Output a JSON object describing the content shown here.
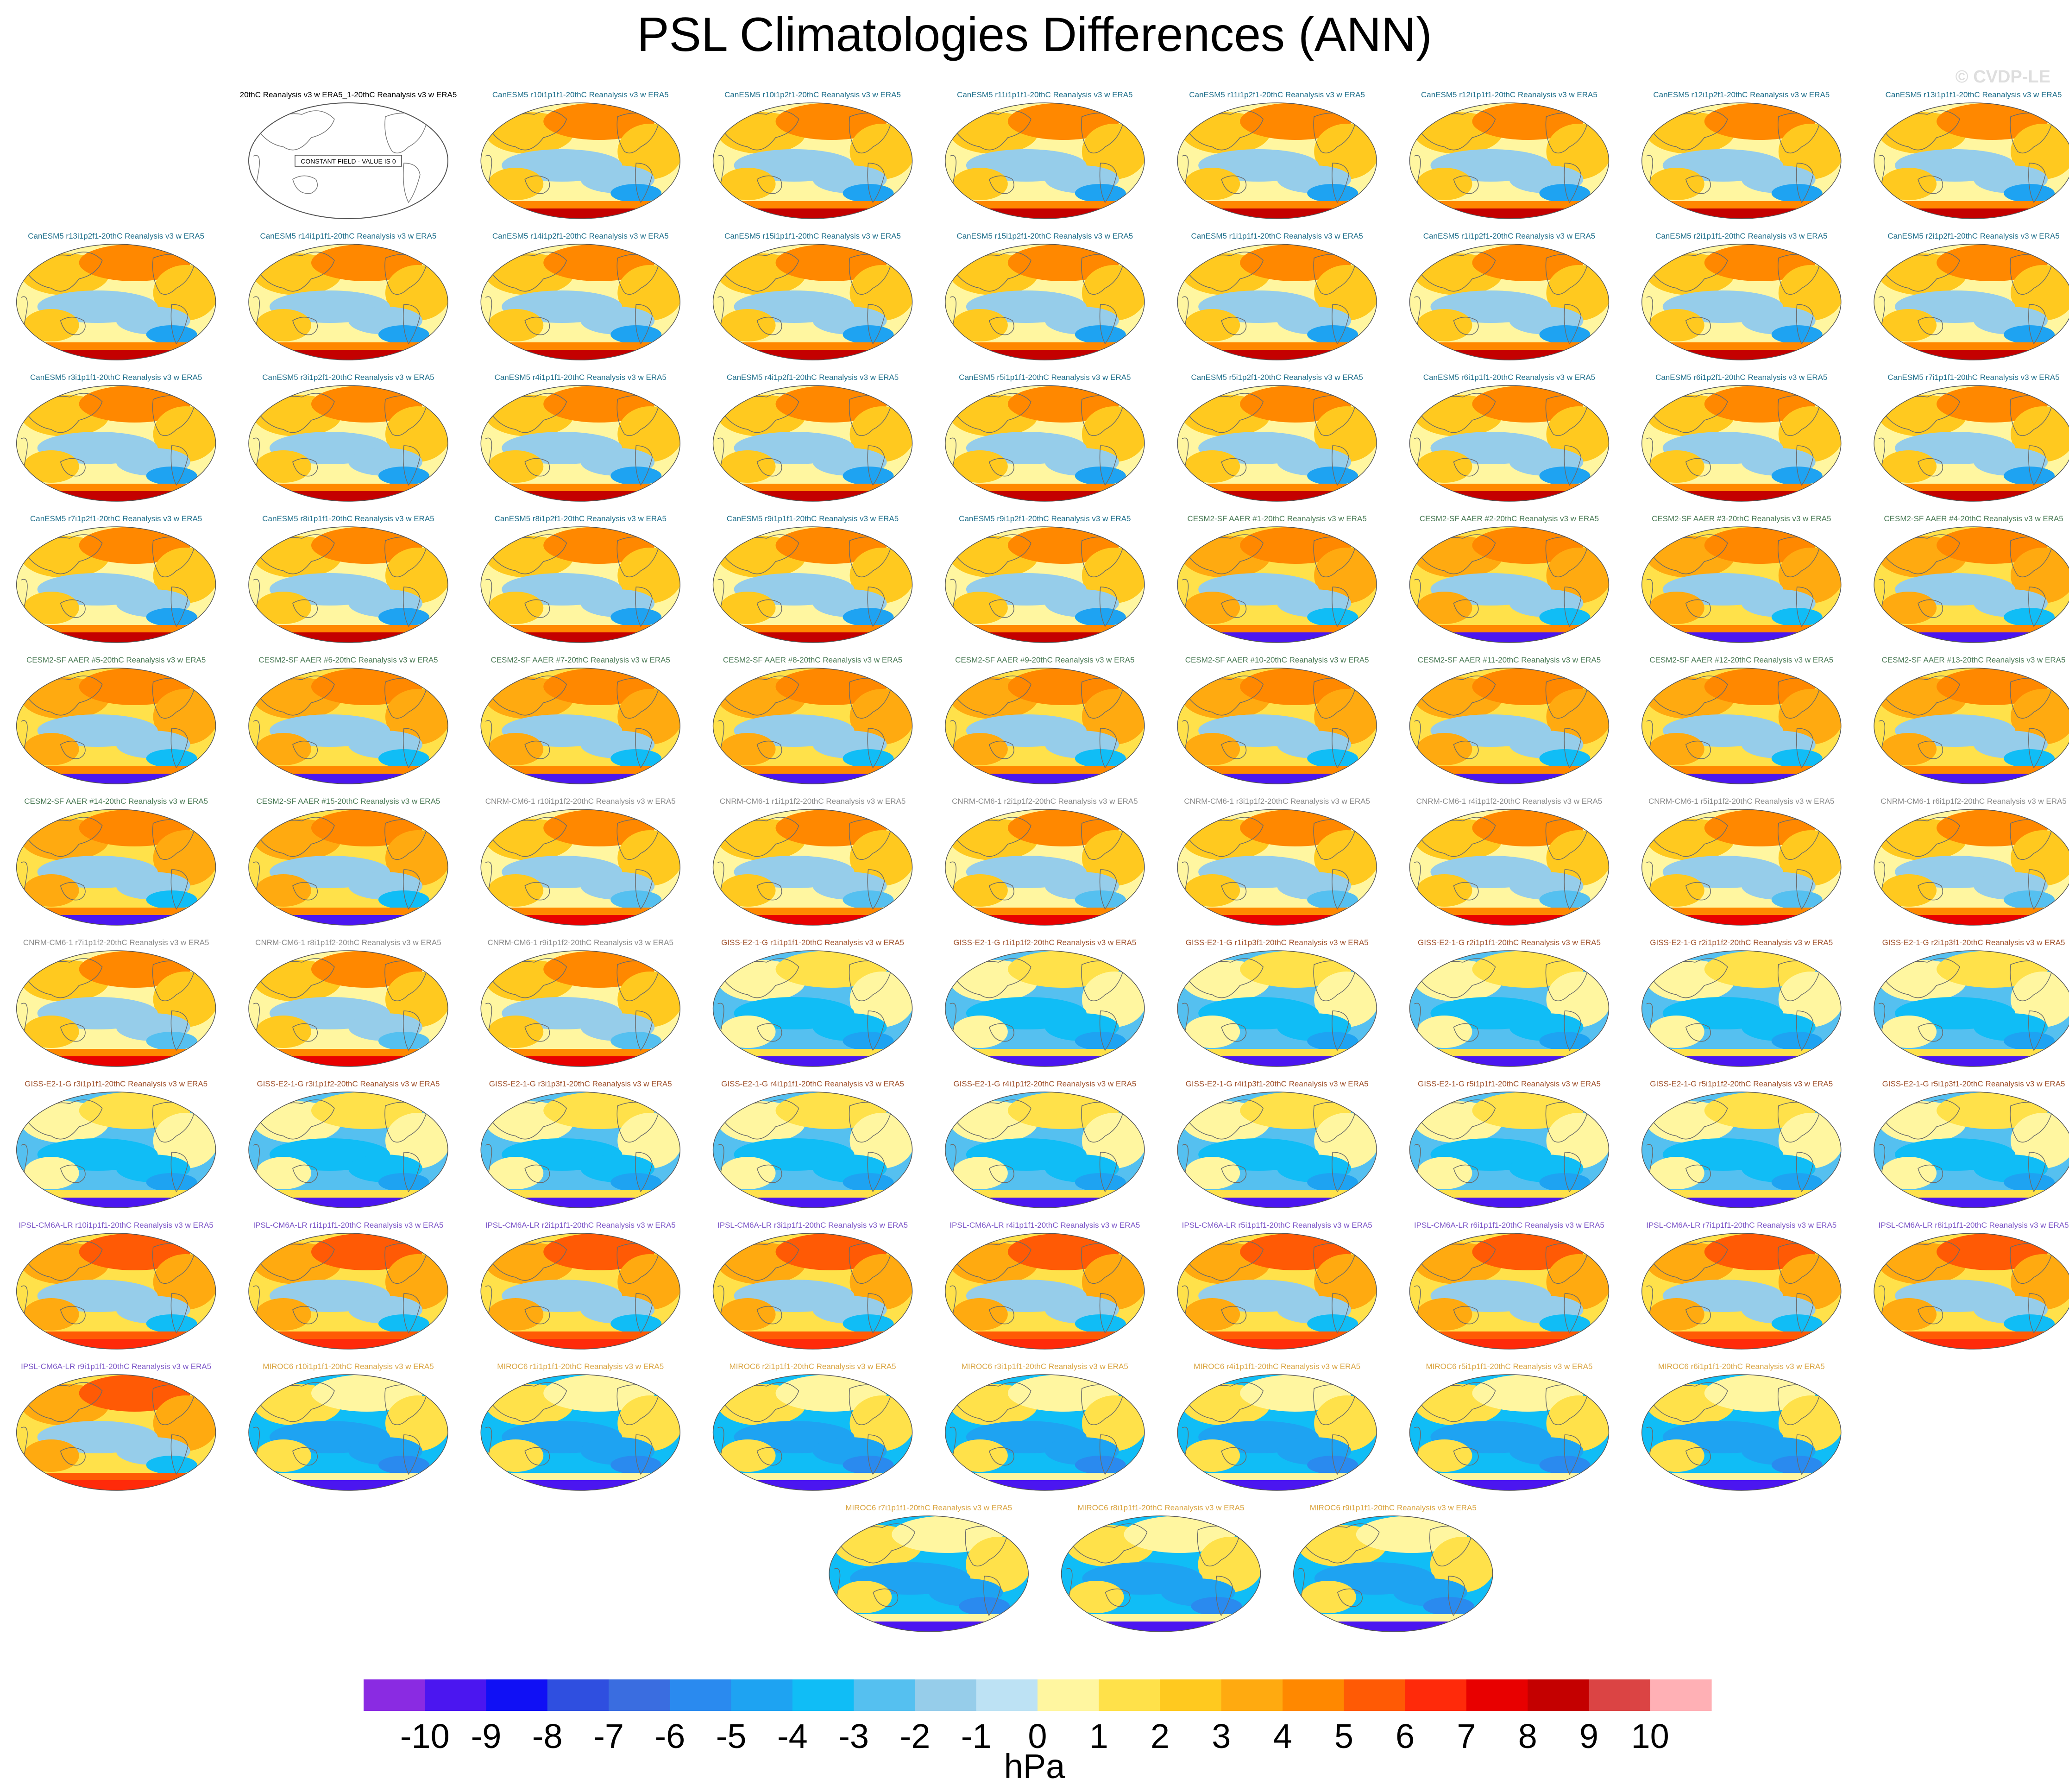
{
  "title": "PSL Climatologies Differences (ANN)",
  "watermark": "© CVDP-LE",
  "colors": {
    "CanESM5": "#1f6f8b",
    "CESM2-SF AAER": "#4a7a55",
    "CNRM-CM6-1": "#8a8a8a",
    "GISS-E2-1-G": "#a0522d",
    "IPSL-CM6A-LR": "#7b55c7",
    "MIROC6": "#d9a441",
    "obs": "#000000"
  },
  "chart_data": {
    "type": "heatmap",
    "title": "PSL Climatologies Differences (ANN)",
    "colorbar": {
      "units": "hPa",
      "levels": [
        -10,
        -9,
        -8,
        -7,
        -6,
        -5,
        -4,
        -3,
        -2,
        -1,
        0,
        1,
        2,
        3,
        4,
        5,
        6,
        7,
        8,
        9,
        10
      ],
      "colors": [
        "#8a2be2",
        "#4b16f0",
        "#1010f5",
        "#2f4fe0",
        "#3a6de0",
        "#2a8aef",
        "#1ea3f2",
        "#10bdf6",
        "#55c0f0",
        "#96cdea",
        "#bde2f4",
        "#fff6a0",
        "#ffe14a",
        "#ffc91f",
        "#ffaa10",
        "#ff8800",
        "#ff5a05",
        "#ff2a0a",
        "#e80000",
        "#c40000",
        "#db4444",
        "#ffb0b5"
      ]
    },
    "panels": [
      {
        "title": "20thC Reanalysis v3 w ERA5_1-20thC Reanalysis v3 w ERA5",
        "group": "obs",
        "note": "CONSTANT FIELD - VALUE IS 0"
      },
      {
        "title": "CanESM5 r10i1p1f1-20thC Reanalysis v3 w ERA5",
        "group": "CanESM5"
      },
      {
        "title": "CanESM5 r10i1p2f1-20thC Reanalysis v3 w ERA5",
        "group": "CanESM5"
      },
      {
        "title": "CanESM5 r11i1p1f1-20thC Reanalysis v3 w ERA5",
        "group": "CanESM5"
      },
      {
        "title": "CanESM5 r11i1p2f1-20thC Reanalysis v3 w ERA5",
        "group": "CanESM5"
      },
      {
        "title": "CanESM5 r12i1p1f1-20thC Reanalysis v3 w ERA5",
        "group": "CanESM5"
      },
      {
        "title": "CanESM5 r12i1p2f1-20thC Reanalysis v3 w ERA5",
        "group": "CanESM5"
      },
      {
        "title": "CanESM5 r13i1p1f1-20thC Reanalysis v3 w ERA5",
        "group": "CanESM5"
      },
      {
        "title": "CanESM5 r13i1p2f1-20thC Reanalysis v3 w ERA5",
        "group": "CanESM5"
      },
      {
        "title": "CanESM5 r14i1p1f1-20thC Reanalysis v3 w ERA5",
        "group": "CanESM5"
      },
      {
        "title": "CanESM5 r14i1p2f1-20thC Reanalysis v3 w ERA5",
        "group": "CanESM5"
      },
      {
        "title": "CanESM5 r15i1p1f1-20thC Reanalysis v3 w ERA5",
        "group": "CanESM5"
      },
      {
        "title": "CanESM5 r15i1p2f1-20thC Reanalysis v3 w ERA5",
        "group": "CanESM5"
      },
      {
        "title": "CanESM5 r1i1p1f1-20thC Reanalysis v3 w ERA5",
        "group": "CanESM5"
      },
      {
        "title": "CanESM5 r1i1p2f1-20thC Reanalysis v3 w ERA5",
        "group": "CanESM5"
      },
      {
        "title": "CanESM5 r2i1p1f1-20thC Reanalysis v3 w ERA5",
        "group": "CanESM5"
      },
      {
        "title": "CanESM5 r2i1p2f1-20thC Reanalysis v3 w ERA5",
        "group": "CanESM5"
      },
      {
        "title": "CanESM5 r3i1p1f1-20thC Reanalysis v3 w ERA5",
        "group": "CanESM5"
      },
      {
        "title": "CanESM5 r3i1p2f1-20thC Reanalysis v3 w ERA5",
        "group": "CanESM5"
      },
      {
        "title": "CanESM5 r4i1p1f1-20thC Reanalysis v3 w ERA5",
        "group": "CanESM5"
      },
      {
        "title": "CanESM5 r4i1p2f1-20thC Reanalysis v3 w ERA5",
        "group": "CanESM5"
      },
      {
        "title": "CanESM5 r5i1p1f1-20thC Reanalysis v3 w ERA5",
        "group": "CanESM5"
      },
      {
        "title": "CanESM5 r5i1p2f1-20thC Reanalysis v3 w ERA5",
        "group": "CanESM5"
      },
      {
        "title": "CanESM5 r6i1p1f1-20thC Reanalysis v3 w ERA5",
        "group": "CanESM5"
      },
      {
        "title": "CanESM5 r6i1p2f1-20thC Reanalysis v3 w ERA5",
        "group": "CanESM5"
      },
      {
        "title": "CanESM5 r7i1p1f1-20thC Reanalysis v3 w ERA5",
        "group": "CanESM5"
      },
      {
        "title": "CanESM5 r7i1p2f1-20thC Reanalysis v3 w ERA5",
        "group": "CanESM5"
      },
      {
        "title": "CanESM5 r8i1p1f1-20thC Reanalysis v3 w ERA5",
        "group": "CanESM5"
      },
      {
        "title": "CanESM5 r8i1p2f1-20thC Reanalysis v3 w ERA5",
        "group": "CanESM5"
      },
      {
        "title": "CanESM5 r9i1p1f1-20thC Reanalysis v3 w ERA5",
        "group": "CanESM5"
      },
      {
        "title": "CanESM5 r9i1p2f1-20thC Reanalysis v3 w ERA5",
        "group": "CanESM5"
      },
      {
        "title": "CESM2-SF AAER #1-20thC Reanalysis v3 w ERA5",
        "group": "CESM2-SF AAER"
      },
      {
        "title": "CESM2-SF AAER #2-20thC Reanalysis v3 w ERA5",
        "group": "CESM2-SF AAER"
      },
      {
        "title": "CESM2-SF AAER #3-20thC Reanalysis v3 w ERA5",
        "group": "CESM2-SF AAER"
      },
      {
        "title": "CESM2-SF AAER #4-20thC Reanalysis v3 w ERA5",
        "group": "CESM2-SF AAER"
      },
      {
        "title": "CESM2-SF AAER #5-20thC Reanalysis v3 w ERA5",
        "group": "CESM2-SF AAER"
      },
      {
        "title": "CESM2-SF AAER #6-20thC Reanalysis v3 w ERA5",
        "group": "CESM2-SF AAER"
      },
      {
        "title": "CESM2-SF AAER #7-20thC Reanalysis v3 w ERA5",
        "group": "CESM2-SF AAER"
      },
      {
        "title": "CESM2-SF AAER #8-20thC Reanalysis v3 w ERA5",
        "group": "CESM2-SF AAER"
      },
      {
        "title": "CESM2-SF AAER #9-20thC Reanalysis v3 w ERA5",
        "group": "CESM2-SF AAER"
      },
      {
        "title": "CESM2-SF AAER #10-20thC Reanalysis v3 w ERA5",
        "group": "CESM2-SF AAER"
      },
      {
        "title": "CESM2-SF AAER #11-20thC Reanalysis v3 w ERA5",
        "group": "CESM2-SF AAER"
      },
      {
        "title": "CESM2-SF AAER #12-20thC Reanalysis v3 w ERA5",
        "group": "CESM2-SF AAER"
      },
      {
        "title": "CESM2-SF AAER #13-20thC Reanalysis v3 w ERA5",
        "group": "CESM2-SF AAER"
      },
      {
        "title": "CESM2-SF AAER #14-20thC Reanalysis v3 w ERA5",
        "group": "CESM2-SF AAER"
      },
      {
        "title": "CESM2-SF AAER #15-20thC Reanalysis v3 w ERA5",
        "group": "CESM2-SF AAER"
      },
      {
        "title": "CNRM-CM6-1 r10i1p1f2-20thC Reanalysis v3 w ERA5",
        "group": "CNRM-CM6-1"
      },
      {
        "title": "CNRM-CM6-1 r1i1p1f2-20thC Reanalysis v3 w ERA5",
        "group": "CNRM-CM6-1"
      },
      {
        "title": "CNRM-CM6-1 r2i1p1f2-20thC Reanalysis v3 w ERA5",
        "group": "CNRM-CM6-1"
      },
      {
        "title": "CNRM-CM6-1 r3i1p1f2-20thC Reanalysis v3 w ERA5",
        "group": "CNRM-CM6-1"
      },
      {
        "title": "CNRM-CM6-1 r4i1p1f2-20thC Reanalysis v3 w ERA5",
        "group": "CNRM-CM6-1"
      },
      {
        "title": "CNRM-CM6-1 r5i1p1f2-20thC Reanalysis v3 w ERA5",
        "group": "CNRM-CM6-1"
      },
      {
        "title": "CNRM-CM6-1 r6i1p1f2-20thC Reanalysis v3 w ERA5",
        "group": "CNRM-CM6-1"
      },
      {
        "title": "CNRM-CM6-1 r7i1p1f2-20thC Reanalysis v3 w ERA5",
        "group": "CNRM-CM6-1"
      },
      {
        "title": "CNRM-CM6-1 r8i1p1f2-20thC Reanalysis v3 w ERA5",
        "group": "CNRM-CM6-1"
      },
      {
        "title": "CNRM-CM6-1 r9i1p1f2-20thC Reanalysis v3 w ERA5",
        "group": "CNRM-CM6-1"
      },
      {
        "title": "GISS-E2-1-G r1i1p1f1-20thC Reanalysis v3 w ERA5",
        "group": "GISS-E2-1-G"
      },
      {
        "title": "GISS-E2-1-G r1i1p1f2-20thC Reanalysis v3 w ERA5",
        "group": "GISS-E2-1-G"
      },
      {
        "title": "GISS-E2-1-G r1i1p3f1-20thC Reanalysis v3 w ERA5",
        "group": "GISS-E2-1-G"
      },
      {
        "title": "GISS-E2-1-G r2i1p1f1-20thC Reanalysis v3 w ERA5",
        "group": "GISS-E2-1-G"
      },
      {
        "title": "GISS-E2-1-G r2i1p1f2-20thC Reanalysis v3 w ERA5",
        "group": "GISS-E2-1-G"
      },
      {
        "title": "GISS-E2-1-G r2i1p3f1-20thC Reanalysis v3 w ERA5",
        "group": "GISS-E2-1-G"
      },
      {
        "title": "GISS-E2-1-G r3i1p1f1-20thC Reanalysis v3 w ERA5",
        "group": "GISS-E2-1-G"
      },
      {
        "title": "GISS-E2-1-G r3i1p1f2-20thC Reanalysis v3 w ERA5",
        "group": "GISS-E2-1-G"
      },
      {
        "title": "GISS-E2-1-G r3i1p3f1-20thC Reanalysis v3 w ERA5",
        "group": "GISS-E2-1-G"
      },
      {
        "title": "GISS-E2-1-G r4i1p1f1-20thC Reanalysis v3 w ERA5",
        "group": "GISS-E2-1-G"
      },
      {
        "title": "GISS-E2-1-G r4i1p1f2-20thC Reanalysis v3 w ERA5",
        "group": "GISS-E2-1-G"
      },
      {
        "title": "GISS-E2-1-G r4i1p3f1-20thC Reanalysis v3 w ERA5",
        "group": "GISS-E2-1-G"
      },
      {
        "title": "GISS-E2-1-G r5i1p1f1-20thC Reanalysis v3 w ERA5",
        "group": "GISS-E2-1-G"
      },
      {
        "title": "GISS-E2-1-G r5i1p1f2-20thC Reanalysis v3 w ERA5",
        "group": "GISS-E2-1-G"
      },
      {
        "title": "GISS-E2-1-G r5i1p3f1-20thC Reanalysis v3 w ERA5",
        "group": "GISS-E2-1-G"
      },
      {
        "title": "IPSL-CM6A-LR r10i1p1f1-20thC Reanalysis v3 w ERA5",
        "group": "IPSL-CM6A-LR"
      },
      {
        "title": "IPSL-CM6A-LR r1i1p1f1-20thC Reanalysis v3 w ERA5",
        "group": "IPSL-CM6A-LR"
      },
      {
        "title": "IPSL-CM6A-LR r2i1p1f1-20thC Reanalysis v3 w ERA5",
        "group": "IPSL-CM6A-LR"
      },
      {
        "title": "IPSL-CM6A-LR r3i1p1f1-20thC Reanalysis v3 w ERA5",
        "group": "IPSL-CM6A-LR"
      },
      {
        "title": "IPSL-CM6A-LR r4i1p1f1-20thC Reanalysis v3 w ERA5",
        "group": "IPSL-CM6A-LR"
      },
      {
        "title": "IPSL-CM6A-LR r5i1p1f1-20thC Reanalysis v3 w ERA5",
        "group": "IPSL-CM6A-LR"
      },
      {
        "title": "IPSL-CM6A-LR r6i1p1f1-20thC Reanalysis v3 w ERA5",
        "group": "IPSL-CM6A-LR"
      },
      {
        "title": "IPSL-CM6A-LR r7i1p1f1-20thC Reanalysis v3 w ERA5",
        "group": "IPSL-CM6A-LR"
      },
      {
        "title": "IPSL-CM6A-LR r8i1p1f1-20thC Reanalysis v3 w ERA5",
        "group": "IPSL-CM6A-LR"
      },
      {
        "title": "IPSL-CM6A-LR r9i1p1f1-20thC Reanalysis v3 w ERA5",
        "group": "IPSL-CM6A-LR"
      },
      {
        "title": "MIROC6 r10i1p1f1-20thC Reanalysis v3 w ERA5",
        "group": "MIROC6"
      },
      {
        "title": "MIROC6 r1i1p1f1-20thC Reanalysis v3 w ERA5",
        "group": "MIROC6"
      },
      {
        "title": "MIROC6 r2i1p1f1-20thC Reanalysis v3 w ERA5",
        "group": "MIROC6"
      },
      {
        "title": "MIROC6 r3i1p1f1-20thC Reanalysis v3 w ERA5",
        "group": "MIROC6"
      },
      {
        "title": "MIROC6 r4i1p1f1-20thC Reanalysis v3 w ERA5",
        "group": "MIROC6"
      },
      {
        "title": "MIROC6 r5i1p1f1-20thC Reanalysis v3 w ERA5",
        "group": "MIROC6"
      },
      {
        "title": "MIROC6 r6i1p1f1-20thC Reanalysis v3 w ERA5",
        "group": "MIROC6"
      },
      {
        "title": "MIROC6 r7i1p1f1-20thC Reanalysis v3 w ERA5",
        "group": "MIROC6"
      },
      {
        "title": "MIROC6 r8i1p1f1-20thC Reanalysis v3 w ERA5",
        "group": "MIROC6"
      },
      {
        "title": "MIROC6 r9i1p1f1-20thC Reanalysis v3 w ERA5",
        "group": "MIROC6"
      }
    ]
  }
}
